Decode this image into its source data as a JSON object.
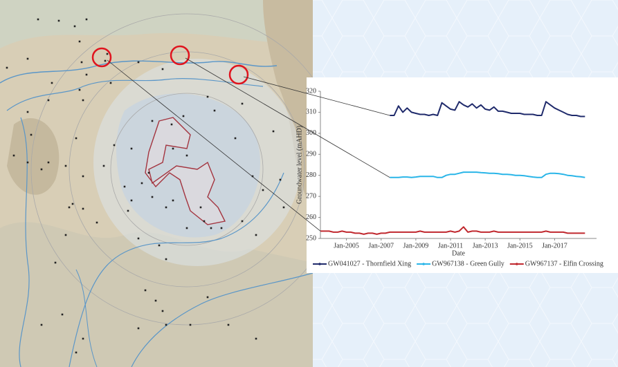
{
  "chart_data": {
    "type": "line",
    "ylabel": "Groundwater level (mAHD)",
    "xlabel": "Date",
    "ylim": [
      250,
      320
    ],
    "yticks": [
      250,
      260,
      270,
      280,
      290,
      300,
      310,
      320
    ],
    "xlim": [
      "Jul-2003",
      "Jun-2019"
    ],
    "xticks": [
      "Jan-2005",
      "Jan-2007",
      "Jan-2009",
      "Jan-2011",
      "Jan-2013",
      "Jan-2015",
      "Jan-2017"
    ],
    "grid": false,
    "legend": "bottom",
    "x": [
      "Jul-2003",
      "Oct-2003",
      "Jan-2004",
      "Apr-2004",
      "Jul-2004",
      "Oct-2004",
      "Jan-2005",
      "Apr-2005",
      "Jul-2005",
      "Oct-2005",
      "Jan-2006",
      "Apr-2006",
      "Jul-2006",
      "Oct-2006",
      "Jan-2007",
      "Apr-2007",
      "Jul-2007",
      "Oct-2007",
      "Jan-2008",
      "Apr-2008",
      "Jul-2008",
      "Oct-2008",
      "Jan-2009",
      "Apr-2009",
      "Jul-2009",
      "Oct-2009",
      "Jan-2010",
      "Apr-2010",
      "Jul-2010",
      "Oct-2010",
      "Jan-2011",
      "Apr-2011",
      "Jul-2011",
      "Oct-2011",
      "Jan-2012",
      "Apr-2012",
      "Jul-2012",
      "Oct-2012",
      "Jan-2013",
      "Apr-2013",
      "Jul-2013",
      "Oct-2013",
      "Jan-2014",
      "Apr-2014",
      "Jul-2014",
      "Oct-2014",
      "Jan-2015",
      "Apr-2015",
      "Jul-2015",
      "Oct-2015",
      "Jan-2016",
      "Apr-2016",
      "Jul-2016",
      "Oct-2016",
      "Jan-2017",
      "Apr-2017",
      "Jul-2017",
      "Oct-2017",
      "Jan-2018",
      "Apr-2018",
      "Jul-2018",
      "Oct-2018"
    ],
    "series": [
      {
        "name": "GW041027 - Thornfield Xing",
        "color": "#1f2a6b",
        "values": [
          null,
          null,
          null,
          null,
          null,
          null,
          null,
          null,
          null,
          null,
          null,
          null,
          null,
          null,
          null,
          null,
          308.5,
          308.5,
          313,
          310,
          312,
          310,
          309.5,
          309,
          309,
          308.5,
          309,
          308.5,
          314.5,
          313,
          311.5,
          311,
          315,
          313.5,
          312.5,
          314,
          312,
          313.5,
          311.5,
          311,
          312.5,
          310.5,
          310.5,
          310,
          309.5,
          309.5,
          309.5,
          309,
          309,
          309,
          308.5,
          308.5,
          315,
          313.5,
          312,
          311,
          310,
          309,
          308.5,
          308.5,
          308,
          308
        ]
      },
      {
        "name": "GW967138 - Green Gully",
        "color": "#29b5e8",
        "values": [
          null,
          null,
          null,
          null,
          null,
          null,
          null,
          null,
          null,
          null,
          null,
          null,
          null,
          null,
          null,
          null,
          279,
          279,
          279,
          279.2,
          279.2,
          279,
          279.2,
          279.5,
          279.5,
          279.5,
          279.5,
          279,
          279,
          280,
          280.5,
          280.5,
          281,
          281.5,
          281.5,
          281.5,
          281.5,
          281.3,
          281.2,
          281,
          281,
          280.8,
          280.5,
          280.5,
          280.3,
          280,
          280,
          279.8,
          279.5,
          279.2,
          279,
          279,
          280.5,
          281,
          281,
          280.8,
          280.5,
          280,
          279.8,
          279.5,
          279.3,
          279
        ]
      },
      {
        "name": "GW967137 - Elfin Crossing",
        "color": "#c0282e",
        "values": [
          253.5,
          253.5,
          253.5,
          253,
          253,
          253.5,
          253,
          253,
          252.5,
          252.5,
          252,
          252.5,
          252.5,
          252,
          252.5,
          252.5,
          253,
          253,
          253,
          253,
          253,
          253,
          253,
          253.5,
          253,
          253,
          253,
          253,
          253,
          253,
          253.5,
          253,
          253.5,
          255.5,
          253,
          253.5,
          253.5,
          253,
          253,
          253,
          253.5,
          253,
          253,
          253,
          253,
          253,
          253,
          253,
          253,
          253,
          253,
          253,
          253.5,
          253,
          253,
          253,
          253,
          252.5,
          252.5,
          252.5,
          252.5,
          252.5
        ]
      }
    ]
  }
}
